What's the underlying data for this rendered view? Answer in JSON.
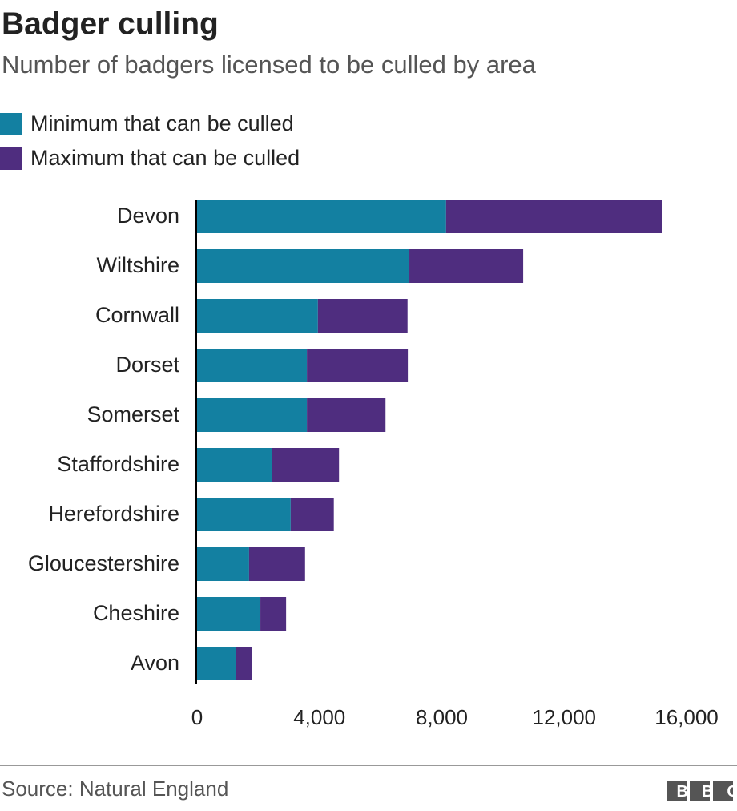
{
  "chart_data": {
    "type": "stacked-bar-horizontal",
    "title": "Badger culling",
    "subtitle": "Number of badgers licensed to be culled by area",
    "categories": [
      "Devon",
      "Wiltshire",
      "Cornwall",
      "Dorset",
      "Somerset",
      "Staffordshire",
      "Herefordshire",
      "Gloucestershire",
      "Cheshire",
      "Avon"
    ],
    "series": [
      {
        "name": "Minimum that can be culled",
        "color": "#1380a1",
        "values": [
          8140,
          6940,
          3950,
          3590,
          3590,
          2440,
          3060,
          1700,
          2070,
          1280
        ]
      },
      {
        "name": "Maximum that can be culled",
        "color": "#4f2d7f",
        "values": [
          7070,
          3720,
          2930,
          3300,
          2570,
          2200,
          1410,
          1830,
          840,
          520
        ]
      }
    ],
    "xlim": [
      0,
      16000
    ],
    "xticks": [
      0,
      {
        "value": 4000,
        "label": "4,000"
      },
      {
        "value": 8000,
        "label": "8,000"
      },
      {
        "value": 12000,
        "label": "12,000"
      },
      {
        "value": 16000,
        "label": "16,000"
      }
    ],
    "grid": false,
    "source": "Source: Natural England",
    "logo": "BBC"
  }
}
